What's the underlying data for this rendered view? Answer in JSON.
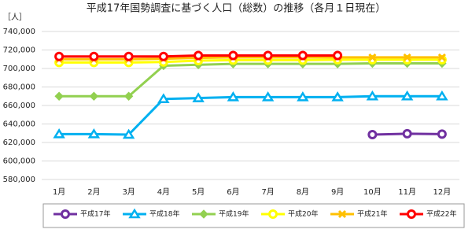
{
  "chart_data": {
    "type": "line",
    "title": "平成17年国勢調査に基づく人口（総数）の推移（各月１日現在）",
    "y_label": "［人］",
    "categories": [
      "1月",
      "2月",
      "3月",
      "4月",
      "5月",
      "6月",
      "7月",
      "8月",
      "9月",
      "10月",
      "11月",
      "12月"
    ],
    "ylim": [
      580000,
      740000
    ],
    "yticks": [
      {
        "value": 580000,
        "label": "580,000"
      },
      {
        "value": 600000,
        "label": "600,000"
      },
      {
        "value": 620000,
        "label": "620,000"
      },
      {
        "value": 640000,
        "label": "640,000"
      },
      {
        "value": 660000,
        "label": "660,000"
      },
      {
        "value": 680000,
        "label": "680,000"
      },
      {
        "value": 700000,
        "label": "700,000"
      },
      {
        "value": 720000,
        "label": "720,000"
      },
      {
        "value": 740000,
        "label": "740,000"
      }
    ],
    "grid": true,
    "series": [
      {
        "name": "平成17年",
        "color": "#7030a0",
        "marker": "circle",
        "values": [
          null,
          null,
          null,
          null,
          null,
          null,
          null,
          null,
          null,
          628500,
          629500,
          629000
        ]
      },
      {
        "name": "平成18年",
        "color": "#00b0f0",
        "marker": "triangle",
        "values": [
          629000,
          629000,
          628500,
          667000,
          668000,
          669000,
          669000,
          669000,
          669000,
          670000,
          670000,
          670000
        ]
      },
      {
        "name": "平成19年",
        "color": "#92d050",
        "marker": "diamond",
        "values": [
          670000,
          670000,
          670000,
          703000,
          704000,
          705000,
          705000,
          705000,
          705000,
          705500,
          705500,
          705500
        ]
      },
      {
        "name": "平成20年",
        "color": "#ffff00",
        "marker": "circle",
        "values": [
          706500,
          706500,
          706500,
          707000,
          708500,
          709000,
          709000,
          709000,
          709500,
          709500,
          709500,
          709500
        ]
      },
      {
        "name": "平成21年",
        "color": "#ffc000",
        "marker": "x",
        "values": [
          710000,
          710000,
          710000,
          710500,
          711500,
          712000,
          712000,
          712000,
          712000,
          712000,
          712000,
          712000
        ]
      },
      {
        "name": "平成22年",
        "color": "#ff0000",
        "marker": "circle",
        "values": [
          713000,
          713000,
          713000,
          713000,
          714000,
          714000,
          714000,
          714000,
          714000,
          null,
          null,
          null
        ]
      }
    ]
  }
}
